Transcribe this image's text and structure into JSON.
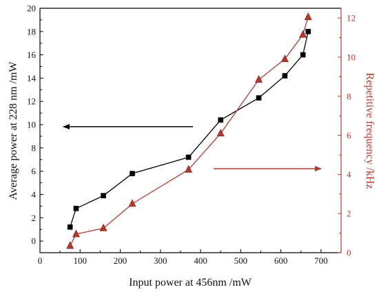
{
  "chart_data": {
    "type": "line",
    "title": "",
    "xlabel": "Input power at 456nm /mW",
    "ylabel_left": "Average power at 228 nm /mW",
    "ylabel_right": "Repetitive frequency /kHz",
    "xlim": [
      0,
      750
    ],
    "ylim_left": [
      -1,
      20
    ],
    "ylim_right": [
      0,
      12.5
    ],
    "x_ticks": [
      "0",
      "100",
      "200",
      "300",
      "400",
      "500",
      "600",
      "700"
    ],
    "y_left_ticks": [
      "0",
      "2",
      "4",
      "6",
      "8",
      "10",
      "12",
      "14",
      "16",
      "18",
      "20"
    ],
    "y_right_ticks": [
      "0",
      "2",
      "4",
      "6",
      "8",
      "10",
      "12"
    ],
    "grid": false,
    "series": [
      {
        "axis": "left",
        "marker": "square",
        "color": "#000000",
        "x": [
          75,
          90,
          158,
          230,
          370,
          450,
          545,
          610,
          655,
          668
        ],
        "y": [
          1.2,
          2.8,
          3.9,
          5.8,
          7.2,
          10.4,
          12.3,
          14.2,
          16.0,
          18.0
        ]
      },
      {
        "axis": "right",
        "marker": "triangle",
        "color": "#b03a2e",
        "x": [
          75,
          90,
          158,
          230,
          370,
          450,
          545,
          610,
          655,
          668
        ],
        "y": [
          0.35,
          0.95,
          1.25,
          2.5,
          4.25,
          6.1,
          8.85,
          9.9,
          11.15,
          12.05
        ]
      }
    ],
    "annotations": [
      {
        "type": "arrow",
        "direction": "left",
        "color": "#000000",
        "target_axis": "left"
      },
      {
        "type": "arrow",
        "direction": "right",
        "color": "#b03a2e",
        "target_axis": "right"
      }
    ]
  }
}
